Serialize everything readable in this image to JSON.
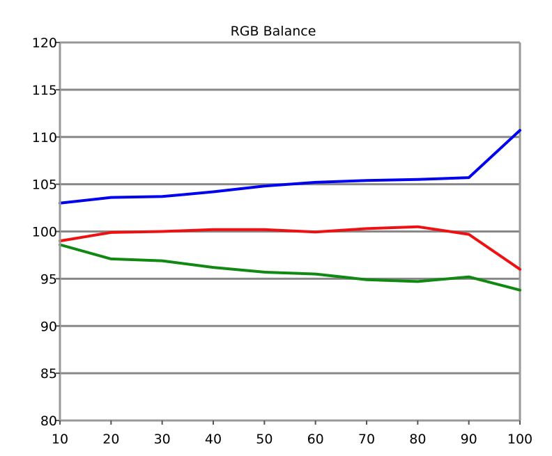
{
  "chart_data": {
    "type": "line",
    "title": "RGB Balance",
    "xlabel": "",
    "ylabel": "",
    "x": [
      10,
      20,
      30,
      40,
      50,
      60,
      70,
      80,
      90,
      100
    ],
    "xlim": [
      10,
      100
    ],
    "ylim": [
      80,
      120
    ],
    "xticks": [
      "10",
      "20",
      "30",
      "40",
      "50",
      "60",
      "70",
      "80",
      "90",
      "100"
    ],
    "yticks": [
      "80",
      "85",
      "90",
      "95",
      "100",
      "105",
      "110",
      "115",
      "120"
    ],
    "grid": "horizontal",
    "legend": "none",
    "series": [
      {
        "color": "#0000ee",
        "values": [
          103.0,
          103.6,
          103.7,
          104.2,
          104.8,
          105.2,
          105.4,
          105.5,
          105.7,
          110.7
        ]
      },
      {
        "color": "#ee1111",
        "values": [
          99.0,
          99.9,
          100.0,
          100.2,
          100.2,
          99.95,
          100.3,
          100.5,
          99.7,
          96.0
        ]
      },
      {
        "color": "#118811",
        "values": [
          98.6,
          97.1,
          96.9,
          96.2,
          95.7,
          95.5,
          94.9,
          94.7,
          95.2,
          93.8
        ]
      }
    ]
  }
}
